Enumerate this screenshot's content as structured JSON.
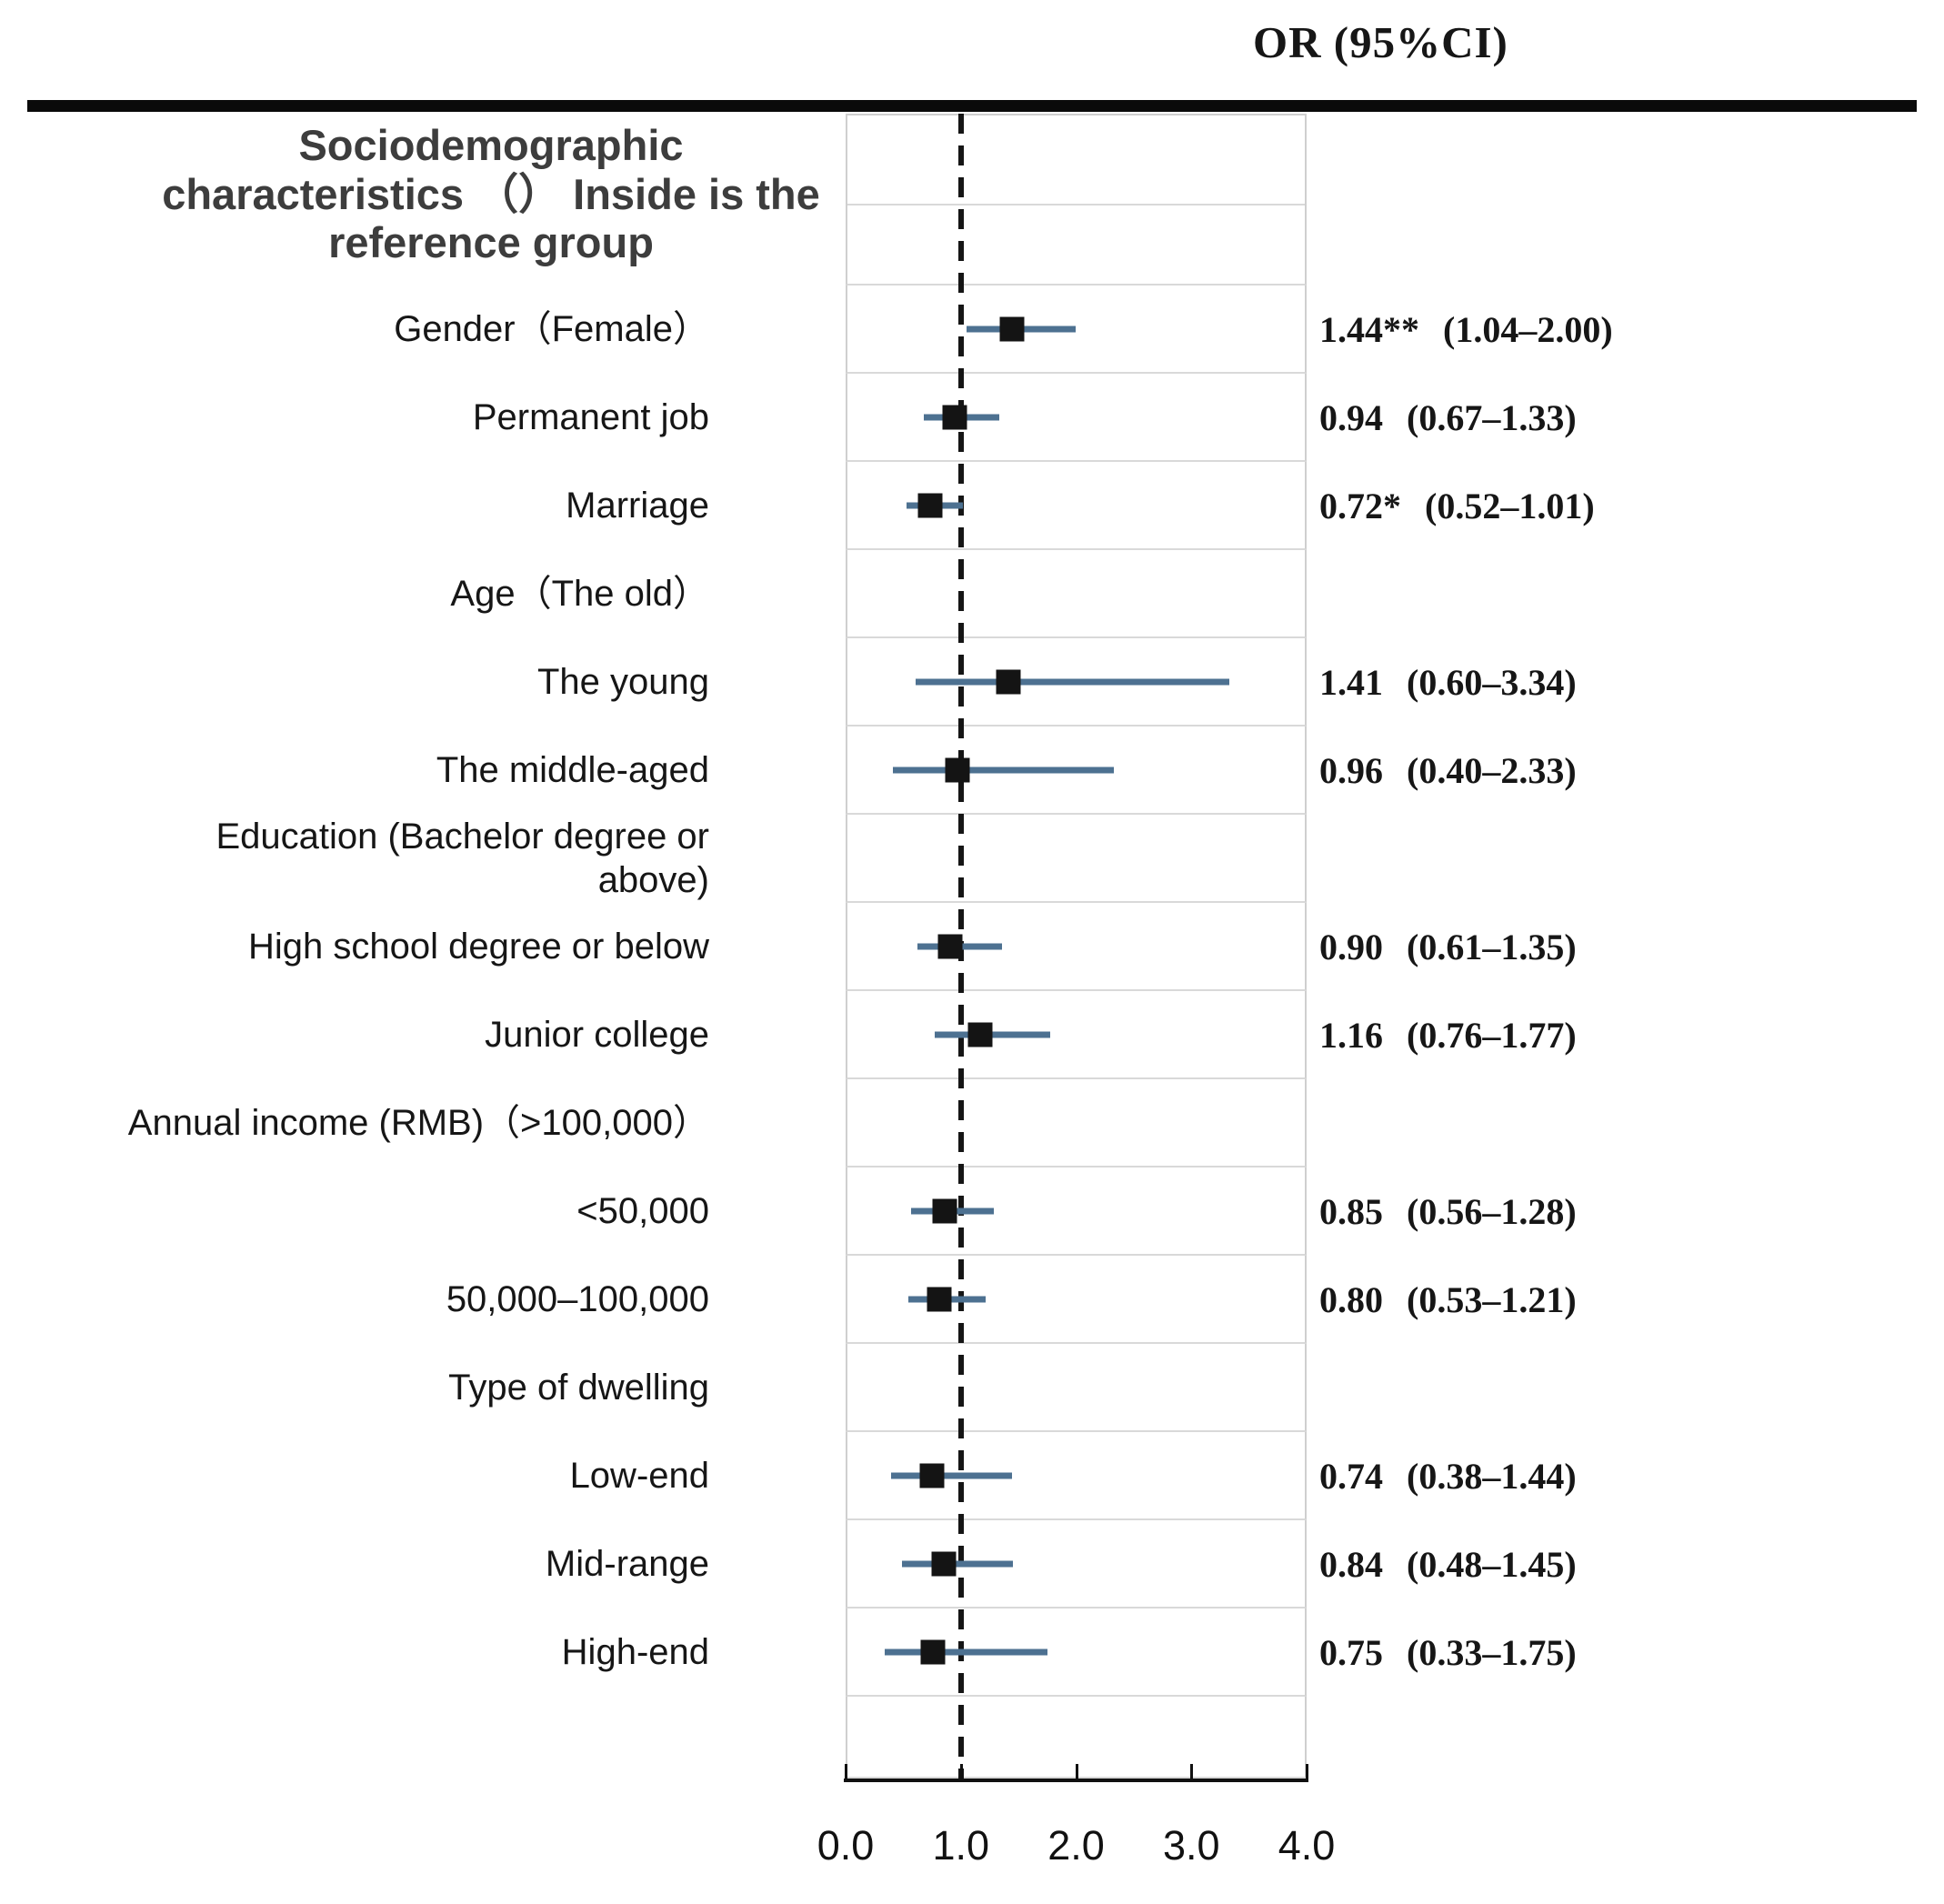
{
  "header": {
    "or_label": "OR (95%CI)"
  },
  "title_lines": [
    "Sociodemographic",
    "characteristics （） Inside is the",
    "reference group"
  ],
  "chart_data": {
    "type": "scatter",
    "variant": "forest-plot",
    "title": "Sociodemographic characteristics （） Inside is the reference group",
    "or_column_header": "OR (95%CI)",
    "x_axis": {
      "min": 0,
      "max": 4,
      "ticks": [
        "0.0",
        "1.0",
        "2.0",
        "3.0",
        "4.0"
      ],
      "tick_values": [
        0,
        1,
        2,
        3,
        4
      ],
      "reference_line": 1.0,
      "grid": "row-separators-only"
    },
    "rows": [
      {
        "label": "Gender（Female）",
        "or": "1.44**",
        "ci": "(1.04–2.00)",
        "est": 1.44,
        "lo": 1.04,
        "hi": 2.0
      },
      {
        "label": "Permanent job",
        "or": "0.94",
        "ci": "(0.67–1.33)",
        "est": 0.94,
        "lo": 0.67,
        "hi": 1.33
      },
      {
        "label": "Marriage",
        "or": "0.72*",
        "ci": "(0.52–1.01)",
        "est": 0.72,
        "lo": 0.52,
        "hi": 1.01
      },
      {
        "label": "Age（The old）"
      },
      {
        "label": "The young",
        "or": "1.41",
        "ci": "(0.60–3.34)",
        "est": 1.41,
        "lo": 0.6,
        "hi": 3.34
      },
      {
        "label": "The middle-aged",
        "or": "0.96",
        "ci": "(0.40–2.33)",
        "est": 0.96,
        "lo": 0.4,
        "hi": 2.33
      },
      {
        "label": "Education (Bachelor degree or above)",
        "label_lines": [
          "Education (Bachelor degree or",
          "above)"
        ]
      },
      {
        "label": "High school degree or below",
        "or": "0.90",
        "ci": "(0.61–1.35)",
        "est": 0.9,
        "lo": 0.61,
        "hi": 1.35
      },
      {
        "label": "Junior college",
        "or": "1.16",
        "ci": "(0.76–1.77)",
        "est": 1.16,
        "lo": 0.76,
        "hi": 1.77
      },
      {
        "label": "Annual income (RMB)（>100,000）"
      },
      {
        "label": "<50,000",
        "or": "0.85",
        "ci": "(0.56–1.28)",
        "est": 0.85,
        "lo": 0.56,
        "hi": 1.28
      },
      {
        "label": "50,000–100,000",
        "or": "0.80",
        "ci": "(0.53–1.21)",
        "est": 0.8,
        "lo": 0.53,
        "hi": 1.21
      },
      {
        "label": "Type of dwelling"
      },
      {
        "label": "Low-end",
        "or": "0.74",
        "ci": "(0.38–1.44)",
        "est": 0.74,
        "lo": 0.38,
        "hi": 1.44
      },
      {
        "label": "Mid-range",
        "or": "0.84",
        "ci": "(0.48–1.45)",
        "est": 0.84,
        "lo": 0.48,
        "hi": 1.45
      },
      {
        "label": "High-end",
        "or": "0.75",
        "ci": "(0.33–1.75)",
        "est": 0.75,
        "lo": 0.33,
        "hi": 1.75
      }
    ],
    "colors": {
      "ci_line": "#4d7191",
      "marker": "#141414",
      "reference_line": "#151515",
      "separator": "#d9d9d9",
      "frame": "#cfcfcf",
      "title_text": "#3d3d3d",
      "label_text": "#161616",
      "or_text": "#161616",
      "background": "#ffffff"
    }
  }
}
